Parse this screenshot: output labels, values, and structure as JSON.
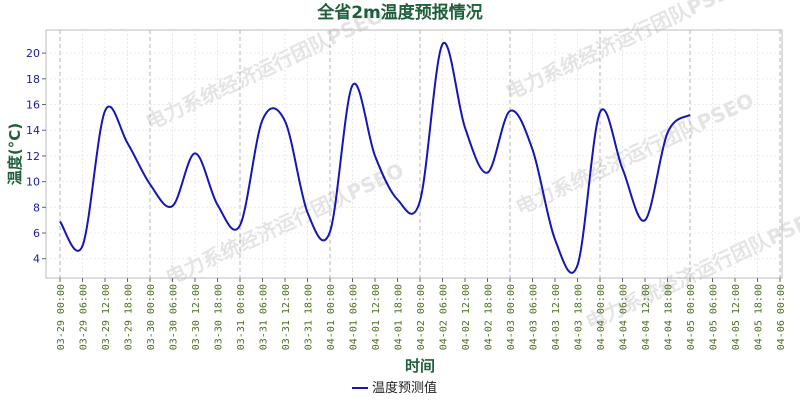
{
  "chart_data": {
    "type": "line",
    "title": "全省2m温度预报情况",
    "xlabel": "时间",
    "ylabel": "温度(°C)",
    "ylim": [
      2.5,
      21.8
    ],
    "yticks": [
      4,
      6,
      8,
      10,
      12,
      14,
      16,
      18,
      20
    ],
    "grid": true,
    "legend_position": "bottom-center",
    "watermark": "电力系统经济运行团队PSEO",
    "colors": {
      "line": "#1515b8",
      "title": "#1f5f3c",
      "ytick": "#1a1aa6",
      "xtick": "#4d6e1e"
    },
    "x": [
      "03-29 00:00",
      "03-29 06:00",
      "03-29 12:00",
      "03-29 18:00",
      "03-30 00:00",
      "03-30 06:00",
      "03-30 12:00",
      "03-30 18:00",
      "03-31 00:00",
      "03-31 06:00",
      "03-31 12:00",
      "03-31 18:00",
      "04-01 00:00",
      "04-01 06:00",
      "04-01 12:00",
      "04-01 18:00",
      "04-02 00:00",
      "04-02 06:00",
      "04-02 12:00",
      "04-02 18:00",
      "04-03 00:00",
      "04-03 06:00",
      "04-03 12:00",
      "04-03 18:00",
      "04-04 00:00",
      "04-04 06:00",
      "04-04 12:00",
      "04-04 18:00",
      "04-05 00:00",
      "04-05 06:00",
      "04-05 12:00",
      "04-05 18:00",
      "04-06 00:00"
    ],
    "series": [
      {
        "name": "温度预测值",
        "values": [
          6.9,
          5.0,
          15.5,
          13.0,
          9.8,
          8.1,
          12.2,
          8.2,
          6.6,
          14.8,
          14.7,
          7.6,
          6.1,
          17.5,
          12.0,
          8.6,
          8.5,
          20.7,
          14.2,
          10.7,
          15.5,
          12.5,
          5.5,
          3.5,
          15.4,
          11.0,
          7.0,
          13.8,
          15.2,
          null,
          null,
          null,
          null
        ],
        "x_index": [
          0,
          1,
          2,
          3,
          4,
          5,
          6,
          7,
          8,
          9,
          10,
          11,
          12,
          13,
          14,
          15,
          16,
          17,
          18,
          19,
          20,
          21,
          22,
          23,
          24,
          25,
          26,
          27,
          28,
          29,
          30,
          31,
          32
        ]
      }
    ]
  }
}
